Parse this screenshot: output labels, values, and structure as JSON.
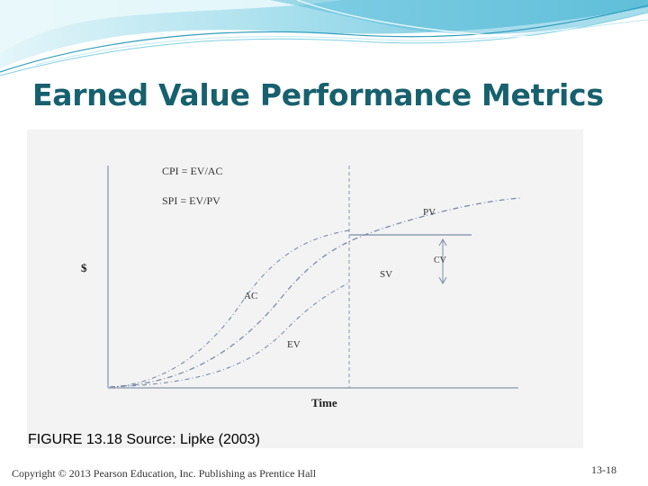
{
  "slide": {
    "title": "Earned Value Performance Metrics",
    "caption": "FIGURE 13.18  Source: Lipke (2003)",
    "copyright": "Copyright © 2013 Pearson Education, Inc. Publishing as Prentice Hall",
    "slide_number": "13-18"
  },
  "diagram": {
    "formula_cpi": "CPI = EV/AC",
    "formula_spi": "SPI = EV/PV",
    "y_axis_label": "$",
    "x_axis_label": "Time",
    "curve_labels": {
      "pv": "PV",
      "ac": "AC",
      "ev": "EV"
    },
    "variance_labels": {
      "cv": "CV",
      "sv": "SV"
    }
  },
  "colors": {
    "title": "#17606e",
    "banner_light": "#bfe9f2",
    "banner_mid": "#7fd0e4",
    "banner_dark": "#3ba9c6",
    "curve": "#7a8ca8",
    "axis": "#9aa6b8"
  }
}
